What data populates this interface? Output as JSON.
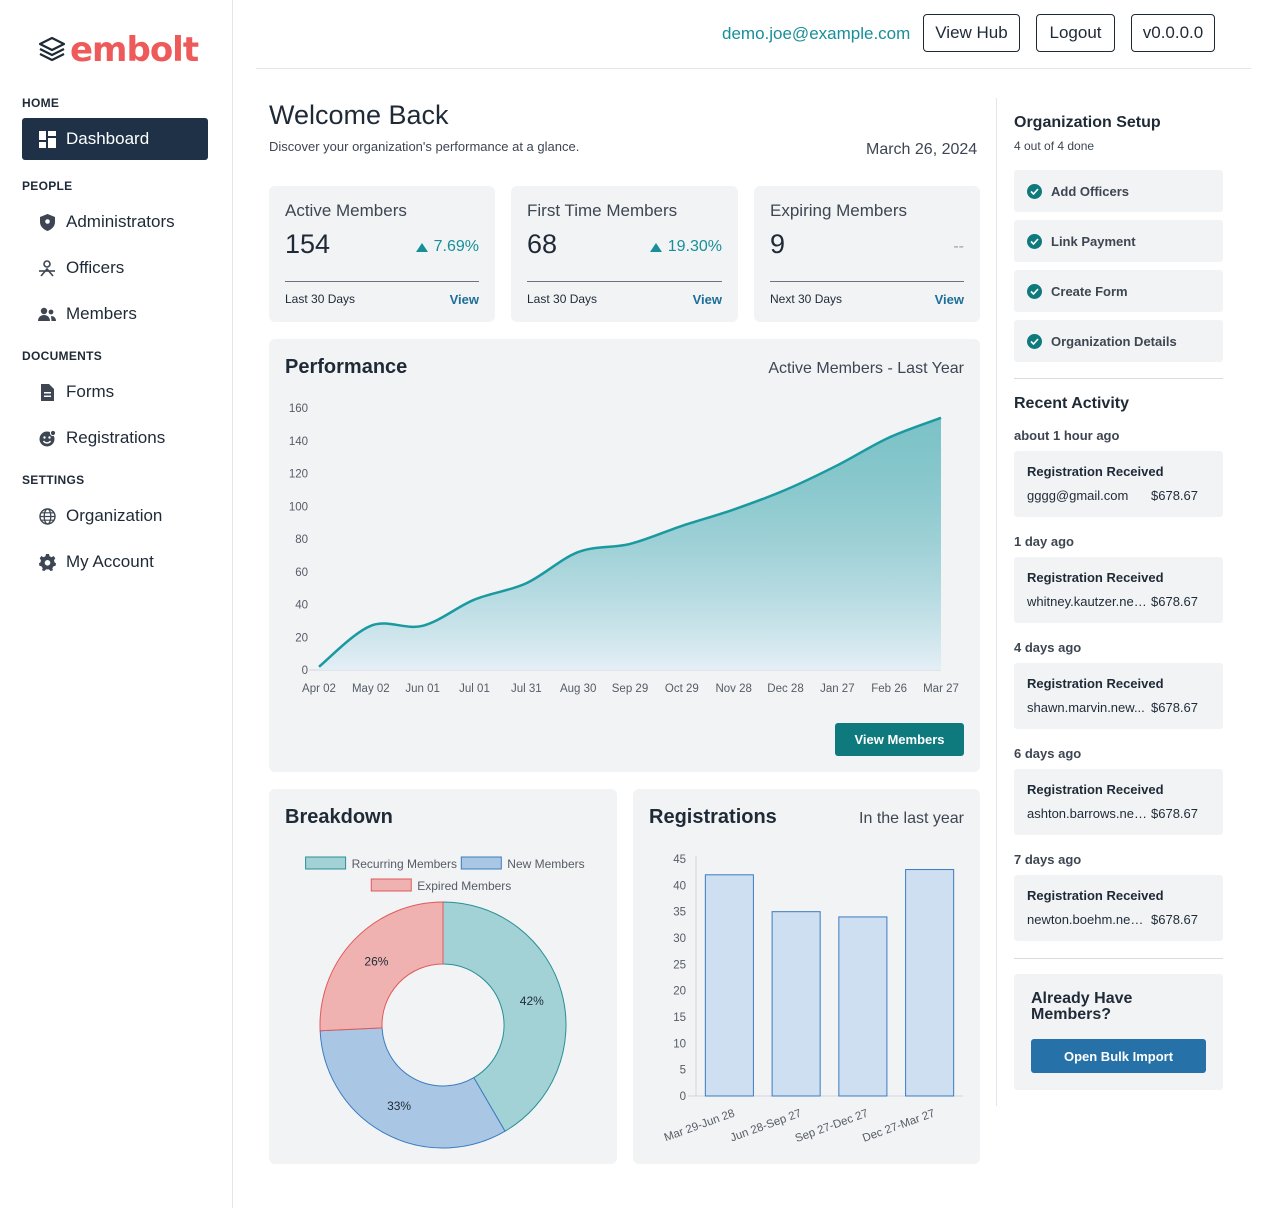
{
  "brand": {
    "name": "embolt",
    "color": "#ee5a5a"
  },
  "header": {
    "email": "demo.joe@example.com",
    "view_hub": "View Hub",
    "logout": "Logout",
    "version": "v0.0.0.0"
  },
  "sidebar": {
    "home_label": "HOME",
    "dashboard": "Dashboard",
    "people_label": "PEOPLE",
    "administrators": "Administrators",
    "officers": "Officers",
    "members": "Members",
    "documents_label": "DOCUMENTS",
    "forms": "Forms",
    "registrations": "Registrations",
    "settings_label": "SETTINGS",
    "organization": "Organization",
    "my_account": "My Account"
  },
  "welcome": {
    "title": "Welcome Back",
    "subtitle": "Discover your organization's performance at a glance.",
    "date": "March 26, 2024"
  },
  "stats": [
    {
      "title": "Active Members",
      "value": "154",
      "delta": "7.69%",
      "period": "Last 30 Days",
      "link": "View"
    },
    {
      "title": "First Time Members",
      "value": "68",
      "delta": "19.30%",
      "period": "Last 30 Days",
      "link": "View"
    },
    {
      "title": "Expiring Members",
      "value": "9",
      "delta": "--",
      "period": "Next 30 Days",
      "link": "View"
    }
  ],
  "performance": {
    "title": "Performance",
    "subtitle": "Active Members - Last Year",
    "button": "View Members"
  },
  "breakdown": {
    "title": "Breakdown"
  },
  "registrations_panel": {
    "title": "Registrations",
    "subtitle": "In the last year"
  },
  "chart_data": [
    {
      "type": "area",
      "x": [
        "Apr 02",
        "May 02",
        "Jun 01",
        "Jul 01",
        "Jul 31",
        "Aug 30",
        "Sep 29",
        "Oct 29",
        "Nov 28",
        "Dec 28",
        "Jan 27",
        "Feb 26",
        "Mar 27"
      ],
      "values": [
        2,
        27,
        27,
        43,
        53,
        72,
        77,
        88,
        98,
        110,
        125,
        142,
        154
      ],
      "ylim": [
        0,
        160
      ],
      "yticks": [
        0,
        20,
        40,
        60,
        80,
        100,
        120,
        140,
        160
      ],
      "color": "#1a9aa0",
      "grid": false
    },
    {
      "type": "pie",
      "donut": true,
      "labels": [
        "Recurring Members",
        "New Members",
        "Expired Members"
      ],
      "values": [
        42,
        33,
        26
      ],
      "value_labels": [
        "42%",
        "33%",
        "26%"
      ],
      "colors": [
        "#a3d2d6",
        "#a9c7e5",
        "#f0b2b0"
      ],
      "stroke_colors": [
        "#2a8f96",
        "#3b7cc0",
        "#e05a5a"
      ],
      "legend": "top"
    },
    {
      "type": "bar",
      "categories": [
        "Mar 29-Jun 28",
        "Jun 28-Sep 27",
        "Sep 27-Dec 27",
        "Dec 27-Mar 27"
      ],
      "values": [
        42,
        35,
        34,
        43
      ],
      "ylim": [
        0,
        45
      ],
      "yticks": [
        0,
        5,
        10,
        15,
        20,
        25,
        30,
        35,
        40,
        45
      ],
      "fill": "#cddff0",
      "stroke": "#3b7cc0",
      "grid": false
    }
  ],
  "org_setup": {
    "title": "Organization Setup",
    "progress": "4 out of 4 done",
    "items": [
      "Add Officers",
      "Link Payment",
      "Create Form",
      "Organization Details"
    ]
  },
  "recent_activity": {
    "title": "Recent Activity",
    "items": [
      {
        "time": "about 1 hour ago",
        "title": "Registration Received",
        "email": "gggg@gmail.com",
        "amount": "$678.67"
      },
      {
        "time": "1 day ago",
        "title": "Registration Received",
        "email": "whitney.kautzer.new...",
        "amount": "$678.67"
      },
      {
        "time": "4 days ago",
        "title": "Registration Received",
        "email": "shawn.marvin.new...",
        "amount": "$678.67"
      },
      {
        "time": "6 days ago",
        "title": "Registration Received",
        "email": "ashton.barrows.new...",
        "amount": "$678.67"
      },
      {
        "time": "7 days ago",
        "title": "Registration Received",
        "email": "newton.boehm.new...",
        "amount": "$678.67"
      }
    ]
  },
  "bulk_import": {
    "title": "Already Have Members?",
    "button": "Open Bulk Import"
  }
}
